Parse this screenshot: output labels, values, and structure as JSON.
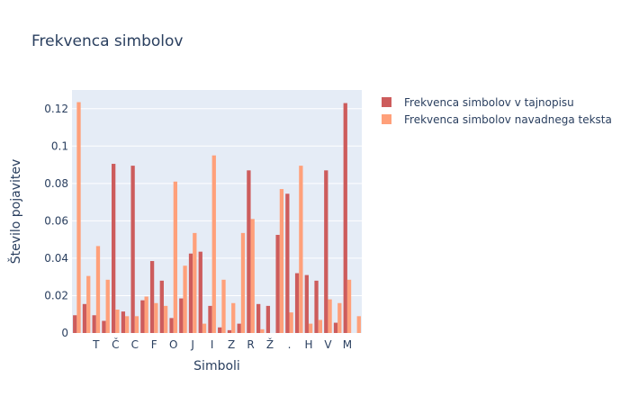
{
  "chart_data": {
    "type": "bar",
    "title": "Frekvenca simbolov",
    "xlabel": "Simboli",
    "ylabel": "Število pojavitev",
    "ylim": [
      0,
      0.13
    ],
    "yticks": [
      0,
      0.02,
      0.04,
      0.06,
      0.08,
      0.1,
      0.12
    ],
    "ytick_labels": [
      "0",
      "0.02",
      "0.04",
      "0.06",
      "0.08",
      "0.1",
      "0.12"
    ],
    "xtick_labels": [
      "T",
      "Č",
      "C",
      "F",
      "O",
      "J",
      "I",
      "Z",
      "R",
      "Ž",
      ".",
      "H",
      "V",
      "M"
    ],
    "xtick_positions": [
      2,
      4,
      6,
      8,
      10,
      12,
      14,
      16,
      18,
      20,
      22,
      24,
      26,
      28
    ],
    "grid": true,
    "legend_position": "top-right",
    "colors": {
      "plot_bg": "#e5ecf6",
      "series1": "#cd5c5c",
      "series2": "#ffa07a",
      "text": "#2a3f5f"
    },
    "series": [
      {
        "name": "Frekvenca simbolov v tajnopisu",
        "color": "#cd5c5c",
        "values": [
          0.0095,
          0.0155,
          0.0095,
          0.0065,
          0.0905,
          0.0115,
          0.0895,
          0.0175,
          0.0385,
          0.028,
          0.008,
          0.0185,
          0.0425,
          0.0435,
          0.0145,
          0.003,
          0.0015,
          0.005,
          0.087,
          0.0155,
          0.0145,
          0.0525,
          0.0745,
          0.032,
          0.031,
          0.028,
          0.087,
          0.0055,
          0.123,
          0.0
        ]
      },
      {
        "name": "Frekvenca simbolov navadnega teksta",
        "color": "#ffa07a",
        "values": [
          0.1235,
          0.0305,
          0.0465,
          0.0285,
          0.0125,
          0.009,
          0.009,
          0.0195,
          0.016,
          0.0145,
          0.081,
          0.036,
          0.0535,
          0.005,
          0.095,
          0.0285,
          0.016,
          0.0535,
          0.061,
          0.002,
          0.0,
          0.077,
          0.011,
          0.0895,
          0.005,
          0.007,
          0.018,
          0.016,
          0.0285,
          0.009
        ]
      }
    ]
  }
}
